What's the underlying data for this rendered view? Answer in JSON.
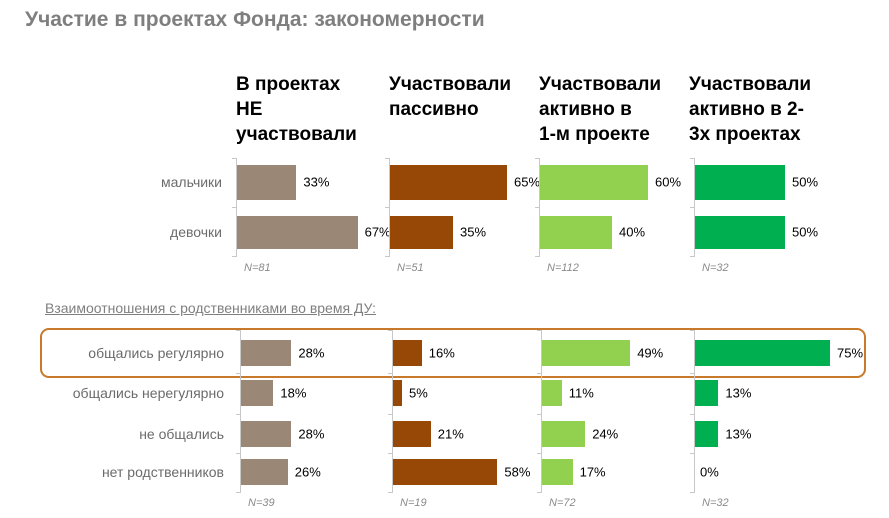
{
  "title": "Участие в проектах Фонда: закономерности",
  "subtitle": "Взаимоотношения  с родственниками во время ДУ:",
  "colors": [
    "#9a8775",
    "#974706",
    "#92d050",
    "#00b050"
  ],
  "highlight_color": "#c87a2a",
  "chart_data": [
    {
      "type": "bar",
      "orientation": "horizontal",
      "unit": "%",
      "groups": [
        "В проектах НЕ участвовали",
        "Участвовали пассивно",
        "Участвовали активно в 1-м проекте",
        "Участвовали активно в 2-3х проектах"
      ],
      "group_headers": [
        [
          "В проектах",
          "НЕ",
          "участвовали"
        ],
        [
          "Участвовали",
          "пассивно"
        ],
        [
          "Участвовали",
          "активно в",
          "1-м проекте"
        ],
        [
          "Участвовали",
          "активно в 2-",
          "3х проектах"
        ]
      ],
      "categories": [
        "мальчики",
        "девочки"
      ],
      "series": [
        {
          "name": "В проектах НЕ участвовали",
          "values": [
            33,
            67
          ],
          "n": "N=81"
        },
        {
          "name": "Участвовали пассивно",
          "values": [
            65,
            35
          ],
          "n": "N=51"
        },
        {
          "name": "Участвовали активно в 1-м проекте",
          "values": [
            60,
            40
          ],
          "n": "N=112"
        },
        {
          "name": "Участвовали активно в 2-3х проектах",
          "values": [
            50,
            50
          ],
          "n": "N=32"
        }
      ]
    },
    {
      "type": "bar",
      "orientation": "horizontal",
      "unit": "%",
      "title": "Взаимоотношения  с родственниками во время ДУ:",
      "categories": [
        "общались регулярно",
        "общались нерегулярно",
        "не общались",
        "нет родственников"
      ],
      "highlighted_category": "общались регулярно",
      "series": [
        {
          "name": "В проектах НЕ участвовали",
          "values": [
            28,
            18,
            28,
            26
          ],
          "n": "N=39"
        },
        {
          "name": "Участвовали пассивно",
          "values": [
            16,
            5,
            21,
            58
          ],
          "n": "N=19"
        },
        {
          "name": "Участвовали активно в 1-м проекте",
          "values": [
            49,
            11,
            24,
            17
          ],
          "n": "N=72"
        },
        {
          "name": "Участвовали активно в 2-3х проектах",
          "values": [
            75,
            13,
            13,
            0
          ],
          "n": "N=32"
        }
      ]
    }
  ]
}
